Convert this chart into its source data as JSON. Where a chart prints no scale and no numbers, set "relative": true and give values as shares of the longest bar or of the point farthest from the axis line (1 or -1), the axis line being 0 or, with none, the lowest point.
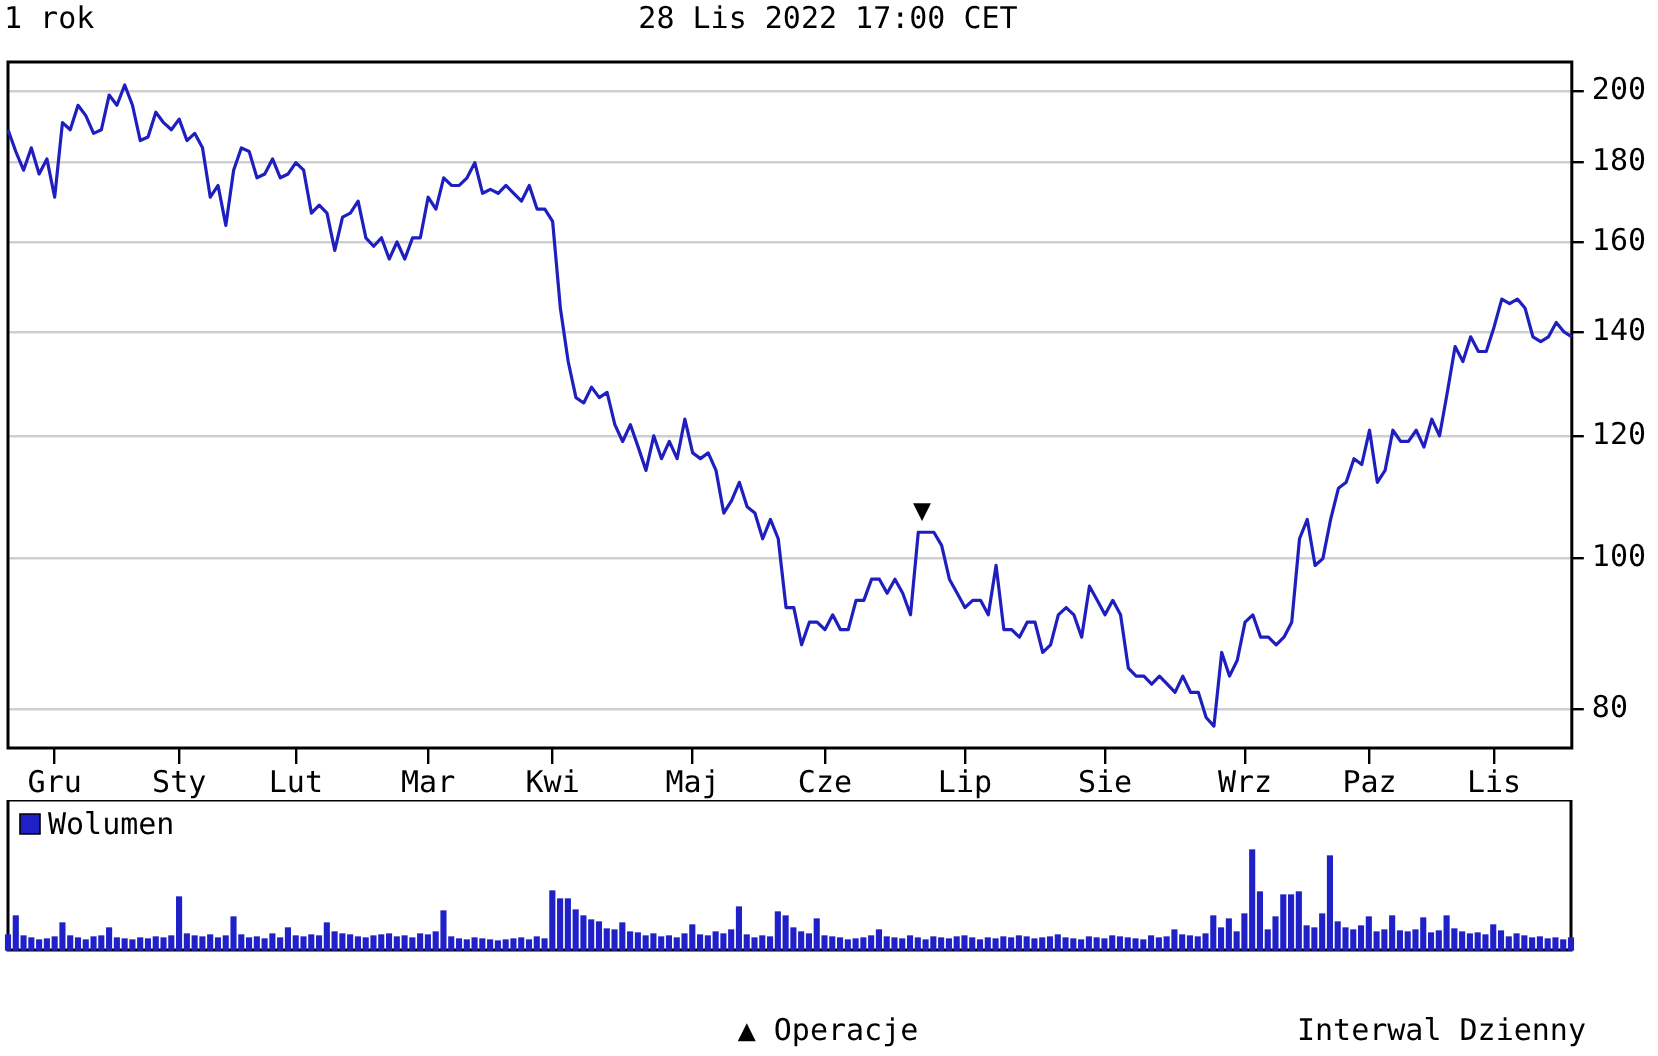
{
  "chart_data": [
    {
      "type": "line",
      "title": "1 rok",
      "subtitle": "28 Lis 2022 17:00 CET",
      "annotations": [
        "▲ Operacje",
        "Interwal Dzienny",
        "▼"
      ],
      "categories": [
        null,
        null,
        null,
        null,
        null,
        null,
        "Gru",
        null,
        null,
        null,
        null,
        null,
        null,
        null,
        null,
        null,
        null,
        null,
        null,
        null,
        null,
        null,
        "Sty",
        null,
        null,
        null,
        null,
        null,
        null,
        null,
        null,
        null,
        null,
        null,
        null,
        null,
        null,
        "Lut",
        null,
        null,
        null,
        null,
        null,
        null,
        null,
        null,
        null,
        null,
        null,
        null,
        null,
        null,
        null,
        null,
        "Mar",
        null,
        null,
        null,
        null,
        null,
        null,
        null,
        null,
        null,
        null,
        null,
        null,
        null,
        null,
        null,
        "Kwi",
        null,
        null,
        null,
        null,
        null,
        null,
        null,
        null,
        null,
        null,
        null,
        null,
        null,
        null,
        null,
        null,
        null,
        "Maj",
        null,
        null,
        null,
        null,
        null,
        null,
        null,
        null,
        null,
        null,
        null,
        null,
        null,
        null,
        null,
        null,
        "Cze",
        null,
        null,
        null,
        null,
        null,
        null,
        null,
        null,
        null,
        null,
        null,
        null,
        null,
        null,
        null,
        null,
        null,
        "Lip",
        null,
        null,
        null,
        null,
        null,
        null,
        null,
        null,
        null,
        null,
        null,
        null,
        null,
        null,
        null,
        null,
        null,
        "Sie",
        null,
        null,
        null,
        null,
        null,
        null,
        null,
        null,
        null,
        null,
        null,
        null,
        null,
        null,
        null,
        null,
        null,
        "Wrz",
        null,
        null,
        null,
        null,
        null,
        null,
        null,
        null,
        null,
        null,
        null,
        null,
        null,
        null,
        null,
        "Paz",
        null,
        null,
        null,
        null,
        null,
        null,
        null,
        null,
        null,
        null,
        null,
        null,
        null,
        null,
        null,
        "Lis",
        null,
        null,
        null,
        null,
        null,
        null,
        null,
        null,
        null,
        null
      ],
      "series": [
        {
          "color": "#1f1fbf",
          "values": [
            189,
            183,
            178,
            184,
            177,
            181,
            171,
            191,
            189,
            196,
            193,
            188,
            189,
            199,
            196,
            202,
            196,
            186,
            187,
            194,
            191,
            189,
            192,
            186,
            188,
            184,
            171,
            174,
            164,
            178,
            184,
            183,
            176,
            177,
            181,
            176,
            177,
            180,
            178,
            167,
            169,
            167,
            158,
            166,
            167,
            170,
            161,
            159,
            161,
            156,
            160,
            156,
            161,
            161,
            171,
            168,
            176,
            174,
            174,
            176,
            180,
            172,
            173,
            172,
            174,
            172,
            170,
            174,
            168,
            168,
            165,
            145,
            134,
            127,
            126,
            129,
            127,
            128,
            122,
            119,
            122,
            118,
            114,
            120,
            116,
            119,
            116,
            123,
            117,
            116,
            117,
            114,
            107,
            109,
            112,
            108,
            107,
            103,
            106,
            103,
            93,
            93,
            88,
            91,
            91,
            90,
            92,
            90,
            90,
            94,
            94,
            97,
            97,
            95,
            97,
            95,
            92,
            104,
            104,
            104,
            102,
            97,
            95,
            93,
            94,
            94,
            92,
            99,
            90,
            90,
            89,
            91,
            91,
            87,
            88,
            92,
            93,
            92,
            89,
            96,
            94,
            92,
            94,
            92,
            85,
            84,
            84,
            83,
            84,
            83,
            82,
            84,
            82,
            82,
            79,
            78,
            87,
            84,
            86,
            91,
            92,
            89,
            89,
            88,
            89,
            91,
            103,
            106,
            99,
            100,
            106,
            111,
            112,
            116,
            115,
            121,
            112,
            114,
            121,
            119,
            119,
            121,
            118,
            123,
            120,
            128,
            137,
            134,
            139,
            136,
            136,
            141,
            147,
            146,
            147,
            145,
            139,
            138,
            139,
            142,
            140,
            139
          ]
        }
      ],
      "ylim": [
        75.5,
        209
      ],
      "yticks": [
        80,
        100,
        120,
        140,
        160,
        180,
        200
      ],
      "log": true,
      "grid": "y"
    },
    {
      "type": "bar",
      "relative": true,
      "legend": "top left",
      "categories": [
        null,
        null,
        null,
        null,
        null,
        null,
        null,
        null,
        null,
        null,
        null,
        null,
        null,
        null,
        null,
        null,
        null,
        null,
        null,
        null,
        null,
        null,
        null,
        null,
        null,
        null,
        null,
        null,
        null,
        null,
        null,
        null,
        null,
        null,
        null,
        null,
        null,
        null,
        null,
        null,
        null,
        null,
        null,
        null,
        null,
        null,
        null,
        null,
        null,
        null,
        null,
        null,
        null,
        null,
        null,
        null,
        null,
        null,
        null,
        null,
        null,
        null,
        null,
        null,
        null,
        null,
        null,
        null,
        null,
        null,
        null,
        null,
        null,
        null,
        null,
        null,
        null,
        null,
        null,
        null,
        null,
        null,
        null,
        null,
        null,
        null,
        null,
        null,
        null,
        null,
        null,
        null,
        null,
        null,
        null,
        null,
        null,
        null,
        null,
        null,
        null,
        null,
        null,
        null,
        null,
        null,
        null,
        null,
        null,
        null,
        null,
        null,
        null,
        null,
        null,
        null,
        null,
        null,
        null,
        null,
        null,
        null,
        null,
        null,
        null,
        null,
        null,
        null,
        null,
        null,
        null,
        null,
        null,
        null,
        null,
        null,
        null,
        null,
        null,
        null,
        null,
        null,
        null,
        null,
        null,
        null,
        null,
        null,
        null,
        null,
        null,
        null,
        null,
        null,
        null,
        null,
        null,
        null,
        null,
        null,
        null,
        null,
        null,
        null,
        null,
        null,
        null,
        null,
        null,
        null,
        null,
        null,
        null,
        null,
        null,
        null,
        null,
        null,
        null,
        null,
        null,
        null,
        null,
        null,
        null,
        null,
        null,
        null,
        null,
        null,
        null,
        null,
        null,
        null,
        null,
        null,
        null,
        null,
        null,
        null,
        null,
        null
      ],
      "series": [
        {
          "name": "Wolumen",
          "color": "#2020c8",
          "values": [
            0.15,
            0.34,
            0.14,
            0.12,
            0.1,
            0.11,
            0.13,
            0.27,
            0.14,
            0.12,
            0.1,
            0.13,
            0.14,
            0.22,
            0.12,
            0.11,
            0.1,
            0.12,
            0.11,
            0.13,
            0.12,
            0.14,
            0.53,
            0.16,
            0.14,
            0.13,
            0.15,
            0.12,
            0.14,
            0.33,
            0.15,
            0.12,
            0.13,
            0.11,
            0.16,
            0.12,
            0.22,
            0.14,
            0.13,
            0.15,
            0.14,
            0.27,
            0.18,
            0.16,
            0.15,
            0.13,
            0.12,
            0.14,
            0.15,
            0.16,
            0.13,
            0.14,
            0.12,
            0.16,
            0.15,
            0.18,
            0.39,
            0.13,
            0.11,
            0.1,
            0.12,
            0.11,
            0.1,
            0.09,
            0.1,
            0.11,
            0.12,
            0.1,
            0.13,
            0.11,
            0.59,
            0.51,
            0.51,
            0.4,
            0.34,
            0.3,
            0.28,
            0.21,
            0.2,
            0.27,
            0.18,
            0.17,
            0.14,
            0.16,
            0.13,
            0.14,
            0.12,
            0.16,
            0.25,
            0.15,
            0.14,
            0.18,
            0.16,
            0.2,
            0.43,
            0.15,
            0.12,
            0.14,
            0.13,
            0.38,
            0.34,
            0.22,
            0.18,
            0.16,
            0.31,
            0.14,
            0.13,
            0.12,
            0.1,
            0.11,
            0.12,
            0.14,
            0.2,
            0.13,
            0.12,
            0.11,
            0.14,
            0.12,
            0.1,
            0.13,
            0.12,
            0.11,
            0.13,
            0.14,
            0.12,
            0.1,
            0.12,
            0.11,
            0.13,
            0.12,
            0.14,
            0.13,
            0.11,
            0.12,
            0.13,
            0.15,
            0.12,
            0.11,
            0.1,
            0.13,
            0.12,
            0.11,
            0.14,
            0.13,
            0.12,
            0.11,
            0.1,
            0.14,
            0.12,
            0.13,
            0.2,
            0.15,
            0.14,
            0.13,
            0.16,
            0.34,
            0.22,
            0.31,
            0.18,
            0.36,
            1.0,
            0.58,
            0.2,
            0.33,
            0.55,
            0.55,
            0.58,
            0.24,
            0.22,
            0.36,
            0.94,
            0.28,
            0.22,
            0.2,
            0.24,
            0.33,
            0.18,
            0.2,
            0.34,
            0.19,
            0.18,
            0.2,
            0.32,
            0.17,
            0.19,
            0.34,
            0.21,
            0.18,
            0.16,
            0.17,
            0.15,
            0.25,
            0.19,
            0.13,
            0.16,
            0.14,
            0.12,
            0.13,
            0.11,
            0.12,
            0.1,
            0.12
          ]
        }
      ]
    }
  ]
}
